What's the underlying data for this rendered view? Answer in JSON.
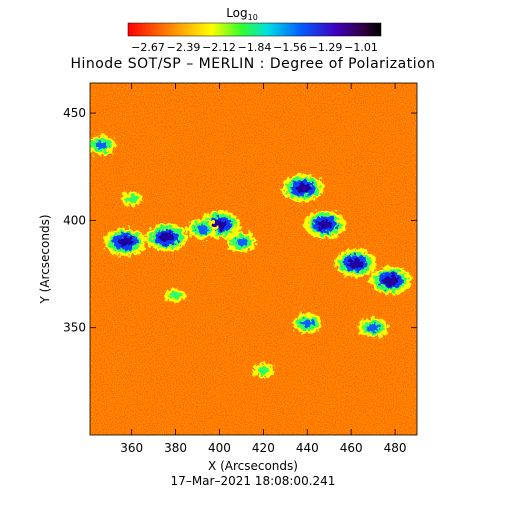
{
  "chart_data": {
    "type": "heatmap",
    "title": "Hinode SOT/SP – MERLIN : Degree of Polarization",
    "colorbar": {
      "label_main": "Log",
      "label_sub": "10",
      "tick_labels": [
        "−2.67",
        "−2.39",
        "−2.12",
        "−1.84",
        "−1.56",
        "−1.29",
        "−1.01"
      ],
      "range": [
        -2.67,
        -1.01
      ],
      "scale": "log10"
    },
    "xlabel": "X (Arcseconds)",
    "ylabel": "Y (Arcseconds)",
    "xlim": [
      341,
      490
    ],
    "ylim": [
      300,
      464
    ],
    "xticks": [
      360,
      380,
      400,
      420,
      440,
      460,
      480
    ],
    "yticks": [
      350,
      400,
      450
    ],
    "timestamp": "17–Mar–2021 18:08:00.241",
    "background_color": "#ff6a00",
    "high_polarization_regions": [
      {
        "x": 346,
        "y": 435,
        "level": "medium"
      },
      {
        "x": 357,
        "y": 390,
        "level": "high"
      },
      {
        "x": 376,
        "y": 392,
        "level": "high"
      },
      {
        "x": 400,
        "y": 398,
        "level": "high"
      },
      {
        "x": 392,
        "y": 396,
        "level": "medium"
      },
      {
        "x": 410,
        "y": 390,
        "level": "medium"
      },
      {
        "x": 438,
        "y": 415,
        "level": "high"
      },
      {
        "x": 448,
        "y": 398,
        "level": "high"
      },
      {
        "x": 462,
        "y": 380,
        "level": "high"
      },
      {
        "x": 478,
        "y": 372,
        "level": "high"
      },
      {
        "x": 440,
        "y": 352,
        "level": "medium"
      },
      {
        "x": 470,
        "y": 350,
        "level": "medium"
      },
      {
        "x": 380,
        "y": 365,
        "level": "low"
      },
      {
        "x": 420,
        "y": 330,
        "level": "low"
      },
      {
        "x": 360,
        "y": 410,
        "level": "low"
      }
    ]
  }
}
